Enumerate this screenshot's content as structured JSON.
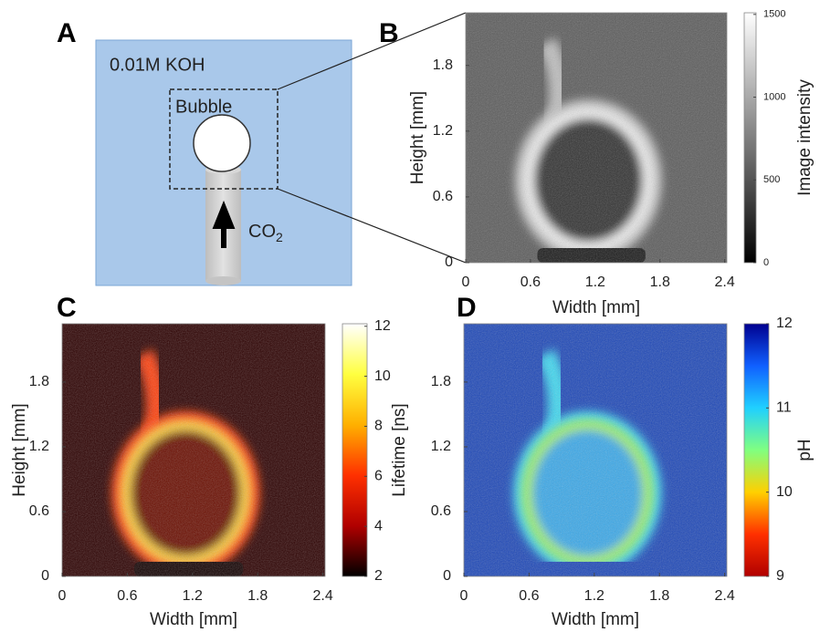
{
  "panels": [
    {
      "label": "A",
      "medium": "0.01M KOH",
      "bubble": "Bubble",
      "gas": "CO",
      "gas_subscript": "2"
    },
    {
      "label": "B",
      "xlabel": "Width [mm]",
      "ylabel": "Height [mm]",
      "xlim": [
        0,
        2.42
      ],
      "ylim": [
        0,
        2.28
      ],
      "xticks": [
        0,
        0.6,
        1.2,
        1.8,
        2.4
      ],
      "yticks": [
        0,
        0.6,
        1.2,
        1.8
      ],
      "colorbar": {
        "label": "Image intensity",
        "lim": [
          0,
          1510
        ],
        "ticks": [
          0,
          500,
          1000,
          1500
        ],
        "colormap": "gray"
      }
    },
    {
      "label": "C",
      "xlabel": "Width [mm]",
      "ylabel": "Height [mm]",
      "xlim": [
        0,
        2.42
      ],
      "ylim": [
        0,
        2.34
      ],
      "xticks": [
        0,
        0.6,
        1.2,
        1.8,
        2.4
      ],
      "yticks": [
        0,
        0.6,
        1.2,
        1.8
      ],
      "colorbar": {
        "label": "Lifetime [ns]",
        "lim": [
          2,
          12.1
        ],
        "ticks": [
          2,
          4,
          6,
          8,
          10,
          12
        ],
        "colormap": "hot"
      }
    },
    {
      "label": "D",
      "xlabel": "Width [mm]",
      "xlim": [
        0,
        2.42
      ],
      "ylim": [
        0,
        2.34
      ],
      "xticks": [
        0,
        0.6,
        1.2,
        1.8,
        2.4
      ],
      "yticks": [
        0,
        0.6,
        1.2,
        1.8
      ],
      "colorbar": {
        "label": "pH",
        "lim": [
          9,
          12
        ],
        "ticks": [
          9,
          10,
          11,
          12
        ],
        "colormap": "jet"
      }
    }
  ]
}
